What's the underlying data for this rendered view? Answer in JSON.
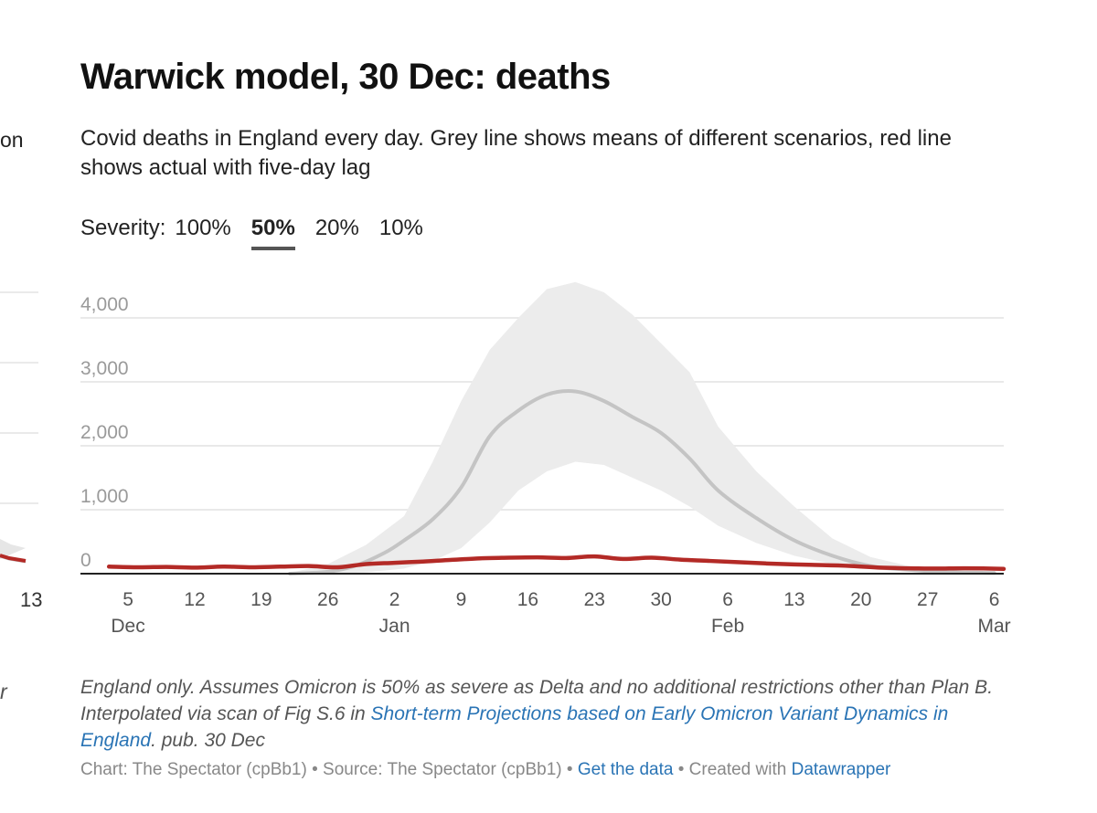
{
  "title": "Warwick model, 30 Dec: deaths",
  "subtitle": "Covid deaths in England every day. Grey line shows means of different scenarios, red line shows actual with five-day lag",
  "severity": {
    "label": "Severity:",
    "options": [
      "100%",
      "50%",
      "20%",
      "10%"
    ],
    "selected": "50%"
  },
  "left_fragment": {
    "text_top": "on",
    "text_bottom": "r",
    "tick": "13"
  },
  "chart_data": {
    "type": "line",
    "title": "Warwick model, 30 Dec: deaths",
    "xlabel": "",
    "ylabel": "",
    "x_range": [
      "2021-11-30",
      "2022-03-07"
    ],
    "ylim": [
      0,
      4000
    ],
    "y_ticks": [
      0,
      1000,
      2000,
      3000,
      4000
    ],
    "y_tick_labels": [
      "0",
      "1,000",
      "2,000",
      "3,000",
      "4,000"
    ],
    "x_ticks": [
      {
        "date": "2021-12-05",
        "label": "5",
        "month": "Dec"
      },
      {
        "date": "2021-12-12",
        "label": "12",
        "month": ""
      },
      {
        "date": "2021-12-19",
        "label": "19",
        "month": ""
      },
      {
        "date": "2021-12-26",
        "label": "26",
        "month": ""
      },
      {
        "date": "2022-01-02",
        "label": "2",
        "month": "Jan"
      },
      {
        "date": "2022-01-09",
        "label": "9",
        "month": ""
      },
      {
        "date": "2022-01-16",
        "label": "16",
        "month": ""
      },
      {
        "date": "2022-01-23",
        "label": "23",
        "month": ""
      },
      {
        "date": "2022-01-30",
        "label": "30",
        "month": ""
      },
      {
        "date": "2022-02-06",
        "label": "6",
        "month": "Feb"
      },
      {
        "date": "2022-02-13",
        "label": "13",
        "month": ""
      },
      {
        "date": "2022-02-20",
        "label": "20",
        "month": ""
      },
      {
        "date": "2022-02-27",
        "label": "27",
        "month": ""
      },
      {
        "date": "2022-03-06",
        "label": "6",
        "month": "Mar"
      }
    ],
    "grid": true,
    "band": {
      "x": [
        "2021-12-22",
        "2021-12-26",
        "2021-12-30",
        "2022-01-03",
        "2022-01-06",
        "2022-01-09",
        "2022-01-12",
        "2022-01-15",
        "2022-01-18",
        "2022-01-21",
        "2022-01-24",
        "2022-01-27",
        "2022-01-30",
        "2022-02-02",
        "2022-02-05",
        "2022-02-09",
        "2022-02-13",
        "2022-02-17",
        "2022-02-21",
        "2022-02-25",
        "2022-03-01",
        "2022-03-06"
      ],
      "lower": [
        0,
        0,
        20,
        80,
        200,
        400,
        800,
        1300,
        1600,
        1750,
        1700,
        1500,
        1300,
        1050,
        750,
        480,
        280,
        150,
        70,
        30,
        10,
        0
      ],
      "upper": [
        10,
        150,
        450,
        900,
        1750,
        2700,
        3500,
        4000,
        4450,
        4560,
        4400,
        4050,
        3600,
        3150,
        2300,
        1600,
        1050,
        550,
        260,
        120,
        50,
        20
      ],
      "color": "#ececec"
    },
    "series": [
      {
        "role": "mean",
        "color": "#c4c4c4",
        "x": [
          "2021-12-22",
          "2021-12-26",
          "2021-12-29",
          "2022-01-01",
          "2022-01-03",
          "2022-01-06",
          "2022-01-09",
          "2022-01-12",
          "2022-01-15",
          "2022-01-18",
          "2022-01-21",
          "2022-01-24",
          "2022-01-27",
          "2022-01-30",
          "2022-02-02",
          "2022-02-05",
          "2022-02-09",
          "2022-02-13",
          "2022-02-17",
          "2022-02-21",
          "2022-02-25",
          "2022-03-01",
          "2022-03-06"
        ],
        "values": [
          0,
          30,
          130,
          330,
          520,
          850,
          1350,
          2150,
          2550,
          2800,
          2850,
          2700,
          2450,
          2200,
          1800,
          1300,
          870,
          520,
          280,
          120,
          60,
          25,
          10
        ]
      },
      {
        "role": "actual",
        "color": "#b32a26",
        "x": [
          "2021-12-03",
          "2021-12-06",
          "2021-12-09",
          "2021-12-12",
          "2021-12-15",
          "2021-12-18",
          "2021-12-21",
          "2021-12-24",
          "2021-12-27",
          "2021-12-30",
          "2022-01-02",
          "2022-01-05",
          "2022-01-08",
          "2022-01-11",
          "2022-01-14",
          "2022-01-17",
          "2022-01-20",
          "2022-01-23",
          "2022-01-26",
          "2022-01-29",
          "2022-02-01",
          "2022-02-04",
          "2022-02-07",
          "2022-02-10",
          "2022-02-13",
          "2022-02-16",
          "2022-02-19",
          "2022-02-22",
          "2022-02-25",
          "2022-02-28",
          "2022-03-03",
          "2022-03-07"
        ],
        "values": [
          110,
          100,
          105,
          95,
          110,
          100,
          110,
          120,
          100,
          150,
          170,
          190,
          215,
          240,
          250,
          255,
          245,
          270,
          230,
          250,
          220,
          200,
          180,
          160,
          145,
          135,
          120,
          95,
          85,
          80,
          85,
          75
        ]
      }
    ]
  },
  "notes": {
    "text_before": "England only. Assumes Omicron is 50% as severe as Delta and no additional restrictions other than Plan B. Interpolated via scan of Fig S.6 in ",
    "link_text": "Short-term Projections based on Early Omicron Variant Dynamics in England",
    "text_after": ". pub. 30 Dec"
  },
  "footer": {
    "chart_credit": "Chart: The Spectator (cpBb1)",
    "sep1": " • ",
    "source": "Source: The Spectator (cpBb1)",
    "sep2": " • ",
    "get_data": "Get the data",
    "sep3": " • ",
    "created_with": "Created with ",
    "tool": "Datawrapper"
  }
}
